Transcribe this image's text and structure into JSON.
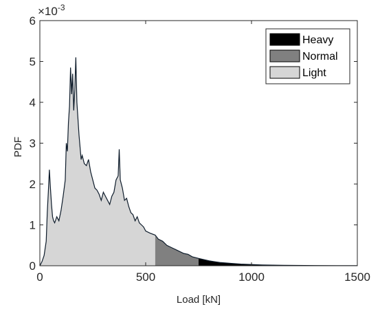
{
  "chart_data": {
    "type": "area",
    "xlabel": "Load [kN]",
    "ylabel": "PDF",
    "y_scale_label": "×10",
    "y_scale_exponent": "-3",
    "xlim": [
      0,
      1500
    ],
    "ylim": [
      0,
      6
    ],
    "x_ticks": [
      0,
      500,
      1000,
      1500
    ],
    "y_ticks": [
      0,
      1,
      2,
      3,
      4,
      5,
      6
    ],
    "grid": false,
    "legend_position": "top-right",
    "legend": [
      "Heavy",
      "Normal",
      "Light"
    ],
    "regions": [
      {
        "name": "Light",
        "x_range": [
          0,
          545
        ],
        "color": "#d6d6d6"
      },
      {
        "name": "Normal",
        "x_range": [
          545,
          750
        ],
        "color": "#808080"
      },
      {
        "name": "Heavy",
        "x_range": [
          750,
          1500
        ],
        "color": "#000000"
      }
    ],
    "legend_colors": {
      "Heavy": "#000000",
      "Normal": "#808080",
      "Light": "#d6d6d6"
    },
    "curve_color": "#0d1b2a",
    "series": [
      {
        "x": [
          0,
          10,
          20,
          30,
          35,
          40,
          45,
          50,
          55,
          60,
          65,
          70,
          80,
          90,
          100,
          110,
          120,
          125,
          130,
          135,
          140,
          145,
          150,
          155,
          160,
          165,
          170,
          175,
          180,
          185,
          190,
          195,
          200,
          210,
          220,
          230,
          240,
          250,
          260,
          270,
          280,
          290,
          300,
          310,
          320,
          330,
          340,
          350,
          360,
          370,
          375,
          380,
          390,
          400,
          410,
          420,
          430,
          440,
          450,
          460,
          470,
          480,
          490,
          500,
          520,
          545,
          560,
          580,
          600,
          620,
          640,
          660,
          680,
          700,
          720,
          750,
          775,
          800,
          825,
          850,
          875,
          900,
          950,
          1000,
          1050,
          1100,
          1150,
          1200,
          1300,
          1400,
          1500
        ],
        "values": [
          0.0,
          0.1,
          0.25,
          0.6,
          1.3,
          1.8,
          2.35,
          1.9,
          1.5,
          1.2,
          1.1,
          1.05,
          1.2,
          1.1,
          1.35,
          1.7,
          2.1,
          3.0,
          2.8,
          3.5,
          3.9,
          4.85,
          4.2,
          4.7,
          3.8,
          4.3,
          5.1,
          4.0,
          3.6,
          3.2,
          2.9,
          2.6,
          2.7,
          2.5,
          2.45,
          2.6,
          2.3,
          2.1,
          1.9,
          1.85,
          1.75,
          1.6,
          1.8,
          1.7,
          1.6,
          1.5,
          1.7,
          1.8,
          2.1,
          2.2,
          2.85,
          2.1,
          1.9,
          1.6,
          1.65,
          1.45,
          1.3,
          1.25,
          1.1,
          1.2,
          1.05,
          1.0,
          0.95,
          0.85,
          0.8,
          0.75,
          0.65,
          0.6,
          0.5,
          0.45,
          0.4,
          0.35,
          0.3,
          0.28,
          0.22,
          0.18,
          0.15,
          0.12,
          0.1,
          0.08,
          0.07,
          0.06,
          0.04,
          0.03,
          0.02,
          0.015,
          0.01,
          0.008,
          0.005,
          0.003,
          0.002
        ]
      }
    ]
  }
}
